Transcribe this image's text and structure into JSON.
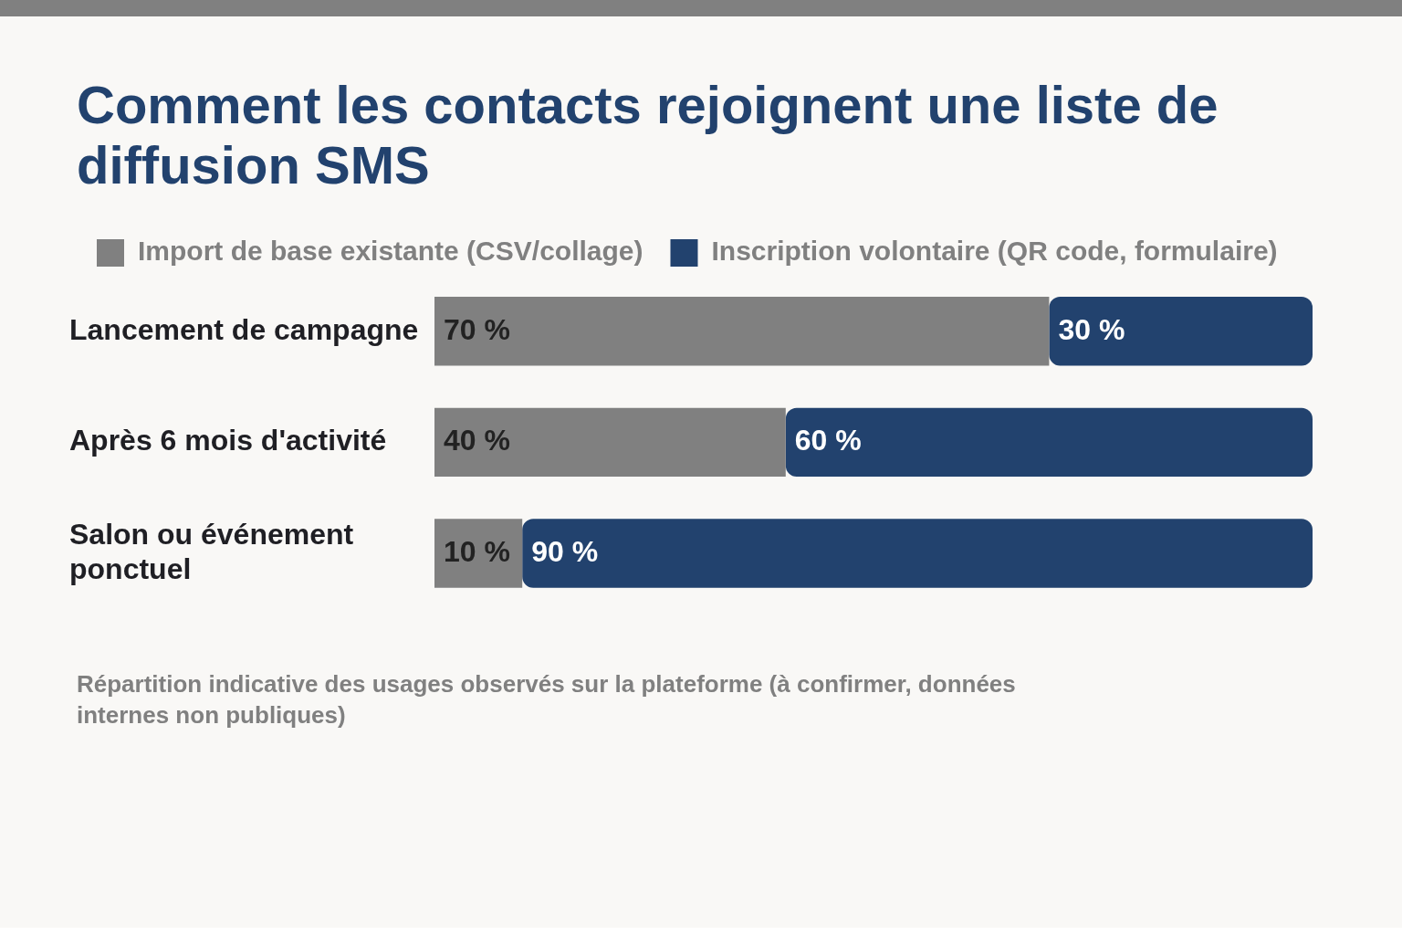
{
  "chart_data": {
    "type": "bar",
    "orientation": "horizontal",
    "stacked": true,
    "title": "Comment les contacts rejoignent une liste de diffusion SMS",
    "categories": [
      "Lancement de campagne",
      "Après 6 mois d'activité",
      "Salon ou événement ponctuel"
    ],
    "series": [
      {
        "name": "Import de base existante (CSV/collage)",
        "color": "#808080",
        "values": [
          70,
          40,
          10
        ],
        "value_labels": [
          "70 %",
          "40 %",
          "10 %"
        ]
      },
      {
        "name": "Inscription volontaire (QR code, formulaire)",
        "color": "#22426e",
        "values": [
          30,
          60,
          90
        ],
        "value_labels": [
          "30 %",
          "60 %",
          "90 %"
        ]
      }
    ],
    "legend": "top left",
    "grid": false,
    "annotations": [
      "Répartition indicative des usages observés sur la plateforme (à confirmer, données internes non publiques)"
    ]
  }
}
